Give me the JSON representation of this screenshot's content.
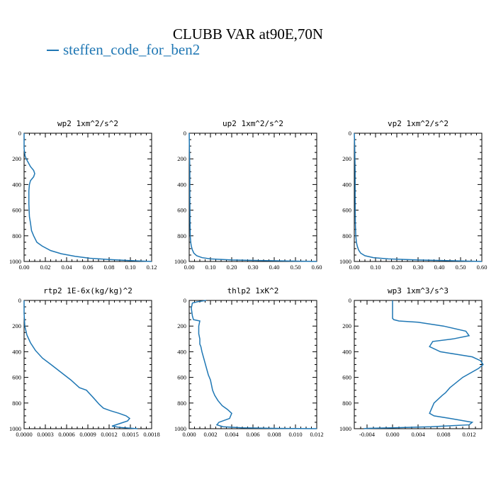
{
  "title": "CLUBB VAR at90E,70N",
  "legend": {
    "label": "steffen_code_for_ben2",
    "color": "#1f77b4"
  },
  "chart_data": [
    {
      "type": "line",
      "title": "wp2  1xm^2/s^2",
      "xlim": [
        0,
        0.12
      ],
      "ylim": [
        1000,
        0
      ],
      "xticks": [
        "0.00",
        "0.02",
        "0.04",
        "0.06",
        "0.08",
        "0.10",
        "0.12"
      ],
      "yticks": [
        "0",
        "200",
        "400",
        "600",
        "800",
        "1000"
      ],
      "series": [
        {
          "color": "#1f77b4",
          "x": [
            0.0,
            0.0,
            0.001,
            0.003,
            0.006,
            0.009,
            0.01,
            0.009,
            0.006,
            0.005,
            0.0045,
            0.0045,
            0.005,
            0.006,
            0.007,
            0.009,
            0.012,
            0.017,
            0.025,
            0.035,
            0.048,
            0.062,
            0.08,
            0.1,
            0.12
          ],
          "y": [
            0,
            120,
            180,
            215,
            260,
            290,
            315,
            340,
            370,
            400,
            450,
            550,
            650,
            700,
            760,
            800,
            850,
            880,
            915,
            940,
            960,
            975,
            985,
            993,
            1000
          ]
        }
      ]
    },
    {
      "type": "line",
      "title": "up2  1xm^2/s^2",
      "xlim": [
        0,
        0.6
      ],
      "ylim": [
        1000,
        0
      ],
      "xticks": [
        "0.00",
        "0.10",
        "0.20",
        "0.30",
        "0.40",
        "0.50",
        "0.60"
      ],
      "yticks": [
        "0",
        "200",
        "400",
        "600",
        "800",
        "1000"
      ],
      "series": [
        {
          "color": "#1f77b4",
          "x": [
            0.0,
            0.001,
            0.002,
            0.003,
            0.003,
            0.004,
            0.005,
            0.007,
            0.01,
            0.015,
            0.022,
            0.035,
            0.06,
            0.1,
            0.2,
            0.35,
            0.5,
            0.6
          ],
          "y": [
            0,
            100,
            200,
            300,
            500,
            700,
            800,
            850,
            880,
            910,
            935,
            955,
            970,
            980,
            988,
            993,
            997,
            1000
          ]
        }
      ]
    },
    {
      "type": "line",
      "title": "vp2  1xm^2/s^2",
      "xlim": [
        0,
        0.6
      ],
      "ylim": [
        1000,
        0
      ],
      "xticks": [
        "0.00",
        "0.10",
        "0.20",
        "0.30",
        "0.40",
        "0.50",
        "0.60"
      ],
      "yticks": [
        "0",
        "200",
        "400",
        "600",
        "800",
        "1000"
      ],
      "series": [
        {
          "color": "#1f77b4",
          "x": [
            0.0,
            0.002,
            0.003,
            0.004,
            0.004,
            0.005,
            0.007,
            0.01,
            0.014,
            0.02,
            0.03,
            0.05,
            0.09,
            0.16,
            0.3,
            0.45,
            0.6
          ],
          "y": [
            0,
            100,
            200,
            300,
            500,
            700,
            800,
            850,
            880,
            910,
            935,
            955,
            970,
            980,
            988,
            994,
            1000
          ]
        }
      ]
    },
    {
      "type": "line",
      "title": "rtp2  1E-6x(kg/kg)^2",
      "xlim": [
        0,
        0.0018
      ],
      "ylim": [
        1000,
        0
      ],
      "xticks": [
        "0.0000",
        "0.0003",
        "0.0006",
        "0.0009",
        "0.0012",
        "0.0015",
        "0.0018"
      ],
      "yticks": [
        "0",
        "200",
        "400",
        "600",
        "800",
        "1000"
      ],
      "series": [
        {
          "color": "#1f77b4",
          "x": [
            0.0,
            0.0,
            1e-05,
            4e-05,
            9e-05,
            0.00016,
            0.00026,
            0.00038,
            0.00052,
            0.00066,
            0.00078,
            0.00088,
            0.00098,
            0.00106,
            0.00112,
            0.00122,
            0.00134,
            0.00144,
            0.00149,
            0.00146,
            0.00135,
            0.00124,
            0.00135,
            0.0016
          ],
          "y": [
            0,
            100,
            200,
            270,
            330,
            390,
            450,
            500,
            560,
            620,
            680,
            700,
            760,
            810,
            840,
            860,
            880,
            900,
            920,
            940,
            960,
            980,
            990,
            1000
          ]
        }
      ]
    },
    {
      "type": "line",
      "title": "thlp2  1xK^2",
      "xlim": [
        0,
        0.012
      ],
      "ylim": [
        1000,
        0
      ],
      "xticks": [
        "0.000",
        "0.002",
        "0.004",
        "0.006",
        "0.008",
        "0.010",
        "0.012"
      ],
      "yticks": [
        "0",
        "200",
        "400",
        "600",
        "800",
        "1000"
      ],
      "series": [
        {
          "color": "#1f77b4",
          "x": [
            0.0016,
            0.0008,
            0.0003,
            0.0002,
            0.0003,
            0.0004,
            0.001,
            0.0009,
            0.0009,
            0.001,
            0.001,
            0.0011,
            0.0012,
            0.0014,
            0.0016,
            0.0018,
            0.002,
            0.0021,
            0.0022,
            0.0024,
            0.0027,
            0.0031,
            0.0036,
            0.004,
            0.0038,
            0.0028,
            0.0026,
            0.0032,
            0.005,
            0.008,
            0.011,
            0.012
          ],
          "y": [
            0,
            10,
            20,
            60,
            120,
            150,
            160,
            200,
            260,
            300,
            340,
            360,
            400,
            460,
            520,
            580,
            620,
            660,
            700,
            740,
            780,
            820,
            850,
            880,
            920,
            950,
            970,
            985,
            993,
            997,
            999,
            1000
          ]
        }
      ]
    },
    {
      "type": "line",
      "title": "wp3  1xm^3/s^3",
      "xlim": [
        -0.006,
        0.014
      ],
      "xtick_values": [
        -0.004,
        0.0,
        0.004,
        0.008,
        0.012
      ],
      "ylim": [
        1000,
        0
      ],
      "xticks": [
        "-0.004",
        "0.000",
        "0.004",
        "0.008",
        "0.012"
      ],
      "yticks": [
        "0",
        "200",
        "400",
        "600",
        "800",
        "1000"
      ],
      "series": [
        {
          "color": "#1f77b4",
          "x": [
            0.0,
            0.0,
            0.0002,
            0.001,
            0.004,
            0.008,
            0.0115,
            0.012,
            0.0095,
            0.0063,
            0.0058,
            0.0075,
            0.01,
            0.0125,
            0.0138,
            0.0142,
            0.0135,
            0.011,
            0.009,
            0.0083,
            0.0078,
            0.0065,
            0.0058,
            0.0065,
            0.009,
            0.0125,
            0.012,
            0.006,
            0.0,
            -0.004,
            -0.0045
          ],
          "y": [
            0,
            140,
            150,
            160,
            170,
            200,
            240,
            275,
            300,
            320,
            360,
            400,
            420,
            440,
            470,
            500,
            530,
            600,
            680,
            720,
            740,
            800,
            880,
            900,
            920,
            950,
            970,
            985,
            993,
            997,
            1000
          ]
        }
      ]
    }
  ]
}
